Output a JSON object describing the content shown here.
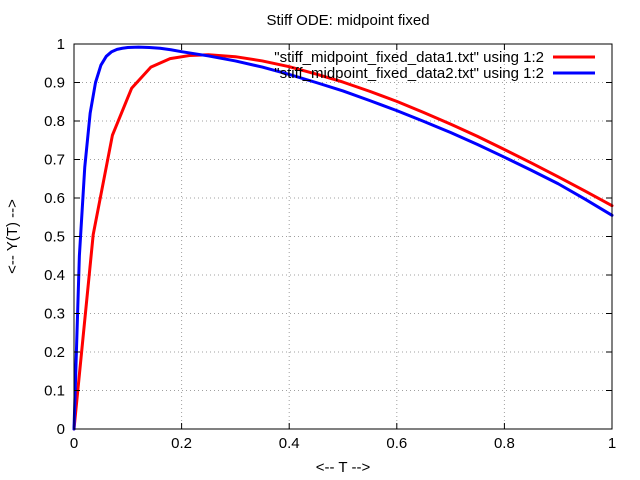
{
  "chart_data": {
    "type": "line",
    "title": "Stiff ODE: midpoint fixed",
    "xlabel": "<-- T -->",
    "ylabel": "<-- Y(T) -->",
    "xlim": [
      0,
      1
    ],
    "ylim": [
      0,
      1
    ],
    "xticks": [
      0,
      0.2,
      0.4,
      0.6,
      0.8,
      1
    ],
    "xtick_labels": [
      "0",
      "0.2",
      "0.4",
      "0.6",
      "0.8",
      "1"
    ],
    "yticks": [
      0,
      0.1,
      0.2,
      0.3,
      0.4,
      0.5,
      0.6,
      0.7,
      0.8,
      0.9,
      1
    ],
    "ytick_labels": [
      "0",
      "0.1",
      "0.2",
      "0.3",
      "0.4",
      "0.5",
      "0.6",
      "0.7",
      "0.8",
      "0.9",
      "1"
    ],
    "grid": true,
    "legend_position": "top-right",
    "series": [
      {
        "name": "\"stiff_midpoint_fixed_data1.txt\" using 1:2",
        "color": "#ff0000",
        "x": [
          0,
          0.0357,
          0.0714,
          0.1071,
          0.1429,
          0.1786,
          0.2143,
          0.25,
          0.3,
          0.35,
          0.4,
          0.45,
          0.5,
          0.55,
          0.6,
          0.65,
          0.7,
          0.75,
          0.8,
          0.85,
          0.9,
          0.95,
          1.0
        ],
        "y": [
          0,
          0.505,
          0.763,
          0.885,
          0.94,
          0.962,
          0.97,
          0.972,
          0.967,
          0.956,
          0.941,
          0.922,
          0.901,
          0.877,
          0.851,
          0.822,
          0.792,
          0.76,
          0.726,
          0.691,
          0.655,
          0.618,
          0.58
        ]
      },
      {
        "name": "\"stiff_midpoint_fixed_data2.txt\" using 1:2",
        "color": "#0000ff",
        "x": [
          0,
          0.01,
          0.02,
          0.03,
          0.04,
          0.05,
          0.06,
          0.07,
          0.08,
          0.09,
          0.1,
          0.12,
          0.14,
          0.16,
          0.18,
          0.2,
          0.25,
          0.3,
          0.35,
          0.4,
          0.45,
          0.5,
          0.55,
          0.6,
          0.65,
          0.7,
          0.75,
          0.8,
          0.85,
          0.9,
          0.95,
          1.0
        ],
        "y": [
          0,
          0.45,
          0.68,
          0.82,
          0.9,
          0.945,
          0.968,
          0.98,
          0.986,
          0.989,
          0.991,
          0.992,
          0.991,
          0.989,
          0.985,
          0.98,
          0.969,
          0.956,
          0.94,
          0.921,
          0.9,
          0.878,
          0.853,
          0.827,
          0.799,
          0.77,
          0.739,
          0.706,
          0.672,
          0.637,
          0.597,
          0.555
        ]
      }
    ]
  }
}
